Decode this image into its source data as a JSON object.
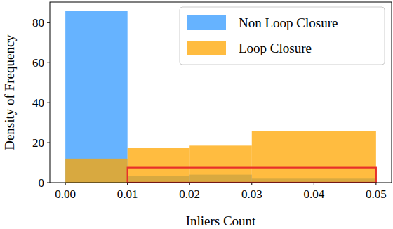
{
  "chart_data": {
    "type": "histogram",
    "x_label": "Inliers Count",
    "y_label": "Density of Frequency",
    "bins": [
      0,
      0.01,
      0.02,
      0.03,
      0.05
    ],
    "series": [
      {
        "name": "Non Loop Closure",
        "color": "#3399ff",
        "values": [
          86,
          3.5,
          4,
          2
        ]
      },
      {
        "name": "Loop Closure",
        "color": "#ffa500",
        "values": [
          12,
          17.5,
          18.5,
          26
        ]
      }
    ],
    "xlim": [
      -0.0025,
      0.0525
    ],
    "ylim": [
      0,
      90.3
    ],
    "xticks": [
      {
        "value": 0,
        "label": "0.00"
      },
      {
        "value": 0.01,
        "label": "0.01"
      },
      {
        "value": 0.02,
        "label": "0.02"
      },
      {
        "value": 0.03,
        "label": "0.03"
      },
      {
        "value": 0.04,
        "label": "0.04"
      },
      {
        "value": 0.05,
        "label": "0.05"
      }
    ],
    "yticks": [
      0,
      20,
      40,
      60,
      80
    ],
    "legend": "upper right",
    "regions": [
      {
        "x0": 0.01,
        "x1": 0.05,
        "y0": 0,
        "y1": 7.5,
        "color": "#e8302a"
      }
    ]
  }
}
